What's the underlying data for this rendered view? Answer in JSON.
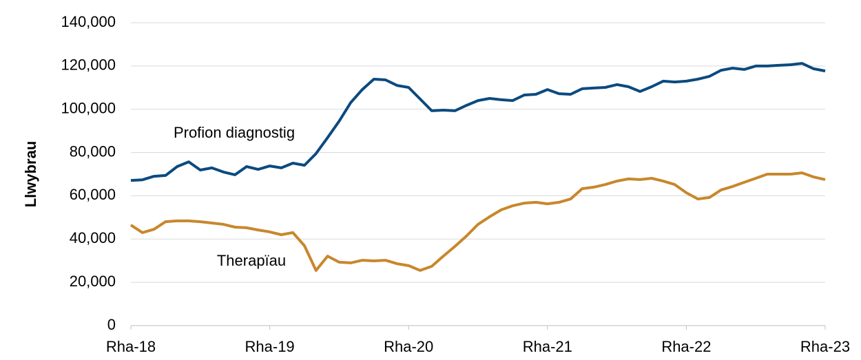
{
  "chart_data": {
    "type": "line",
    "y_label": "Llwybrau",
    "categories": [
      "Rha-18",
      null,
      null,
      null,
      null,
      null,
      null,
      null,
      null,
      null,
      null,
      null,
      "Rha-19",
      null,
      null,
      null,
      null,
      null,
      null,
      null,
      null,
      null,
      null,
      null,
      "Rha-20",
      null,
      null,
      null,
      null,
      null,
      null,
      null,
      null,
      null,
      null,
      null,
      "Rha-21",
      null,
      null,
      null,
      null,
      null,
      null,
      null,
      null,
      null,
      null,
      null,
      "Rha-22",
      null,
      null,
      null,
      null,
      null,
      null,
      null,
      null,
      null,
      null,
      null,
      "Rha-23"
    ],
    "series": [
      {
        "name": "Profion diagnostig",
        "color": "#0b4a7f",
        "values": [
          67100,
          67400,
          69000,
          69400,
          73500,
          75700,
          71900,
          72900,
          71000,
          69700,
          73500,
          72200,
          73800,
          72900,
          75100,
          74100,
          79500,
          86900,
          94500,
          103100,
          109100,
          113900,
          113600,
          111000,
          110100,
          104700,
          99300,
          99600,
          99300,
          101800,
          104000,
          105000,
          104400,
          104000,
          106600,
          106900,
          109100,
          107200,
          106900,
          109500,
          109800,
          110100,
          111400,
          110400,
          108200,
          110400,
          113000,
          112600,
          113000,
          113900,
          115200,
          118000,
          119000,
          118400,
          120000,
          120000,
          120300,
          120600,
          121200,
          118700,
          117700
        ]
      },
      {
        "name": "Therapïau",
        "color": "#c8872c",
        "values": [
          46500,
          43000,
          44500,
          48000,
          48400,
          48400,
          48000,
          47400,
          46800,
          45500,
          45200,
          44200,
          43300,
          42000,
          43000,
          36900,
          25500,
          32100,
          29300,
          29000,
          30200,
          29900,
          30200,
          28600,
          27700,
          25500,
          27400,
          32100,
          36600,
          41400,
          46800,
          50300,
          53500,
          55400,
          56600,
          57000,
          56300,
          57000,
          58500,
          63300,
          64000,
          65200,
          66800,
          67800,
          67500,
          68100,
          66800,
          65200,
          61400,
          58500,
          59200,
          62700,
          64300,
          66200,
          68100,
          70000,
          70000,
          70000,
          70600,
          68700,
          67500
        ]
      }
    ],
    "ylim": [
      0,
      140000
    ],
    "yticks": [
      0,
      {
        "value": 20000,
        "label": "20,000"
      },
      {
        "value": 40000,
        "label": "40,000"
      },
      {
        "value": 60000,
        "label": "60,000"
      },
      {
        "value": 80000,
        "label": "80,000"
      },
      {
        "value": 100000,
        "label": "100,000"
      },
      {
        "value": 120000,
        "label": "120,000"
      },
      {
        "value": 140000,
        "label": "140,000"
      }
    ],
    "grid": true
  }
}
